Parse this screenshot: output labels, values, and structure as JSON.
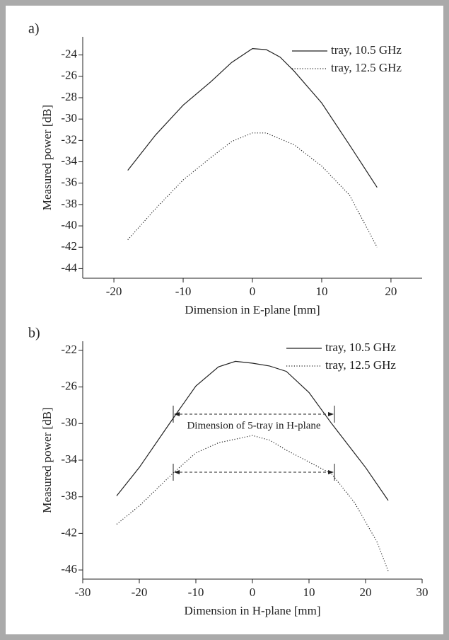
{
  "chart_data": [
    {
      "type": "line",
      "label": "a)",
      "xlabel": "Dimension in E-plane [mm]",
      "ylabel": "Measured power [dB]",
      "xlim": [
        -24.5,
        24.5
      ],
      "xticks": [
        -20,
        -10,
        0,
        10,
        20
      ],
      "ylim": [
        -44.9,
        -22.3
      ],
      "yticks": [
        -24,
        -26,
        -28,
        -30,
        -32,
        -34,
        -36,
        -38,
        -40,
        -42,
        -44
      ],
      "legend": "upper right",
      "series": [
        {
          "name": "tray, 10.5 GHz",
          "color": "#222222",
          "style": "solid",
          "x": [
            -18,
            -14,
            -10,
            -6,
            -3,
            0,
            2,
            4,
            6,
            10,
            14,
            18
          ],
          "values": [
            -34.8,
            -31.5,
            -28.7,
            -26.5,
            -24.7,
            -23.4,
            -23.5,
            -24.2,
            -25.5,
            -28.5,
            -32.4,
            -36.4
          ]
        },
        {
          "name": "tray, 12.5 GHz",
          "color": "#222222",
          "style": "dotted",
          "x": [
            -18,
            -14,
            -10,
            -6,
            -3,
            0,
            2,
            6,
            10,
            14,
            18
          ],
          "values": [
            -41.3,
            -38.4,
            -35.7,
            -33.6,
            -32.1,
            -31.3,
            -31.3,
            -32.4,
            -34.4,
            -37.1,
            -42.0
          ]
        }
      ]
    },
    {
      "type": "line",
      "label": "b)",
      "xlabel": "Dimension in H-plane [mm]",
      "ylabel": "Measured power [dB]",
      "xlim": [
        -30,
        30
      ],
      "xticks": [
        -30,
        -20,
        -10,
        0,
        10,
        20,
        30
      ],
      "ylim": [
        -47,
        -21
      ],
      "yticks": [
        -22,
        -26,
        -30,
        -34,
        -38,
        -42,
        -46
      ],
      "legend": "upper right",
      "annotation": "Dimension of 5-tray in H-plane",
      "series": [
        {
          "name": "tray, 10.5 GHz",
          "color": "#222222",
          "style": "solid",
          "x": [
            -24,
            -20,
            -14,
            -10,
            -6,
            -3,
            0,
            3,
            6,
            10,
            14,
            20,
            24
          ],
          "values": [
            -37.9,
            -34.8,
            -29.4,
            -25.9,
            -23.8,
            -23.2,
            -23.4,
            -23.7,
            -24.3,
            -26.6,
            -30.0,
            -34.8,
            -38.4
          ]
        },
        {
          "name": "tray, 12.5 GHz",
          "color": "#222222",
          "style": "dotted",
          "x": [
            -24,
            -20,
            -14,
            -10,
            -6,
            -3,
            0,
            3,
            6,
            10,
            14,
            18,
            22,
            24
          ],
          "values": [
            -41.0,
            -39.0,
            -35.4,
            -33.2,
            -32.1,
            -31.7,
            -31.3,
            -31.8,
            -32.9,
            -34.2,
            -35.5,
            -38.6,
            -42.9,
            -46.1
          ]
        }
      ]
    }
  ]
}
